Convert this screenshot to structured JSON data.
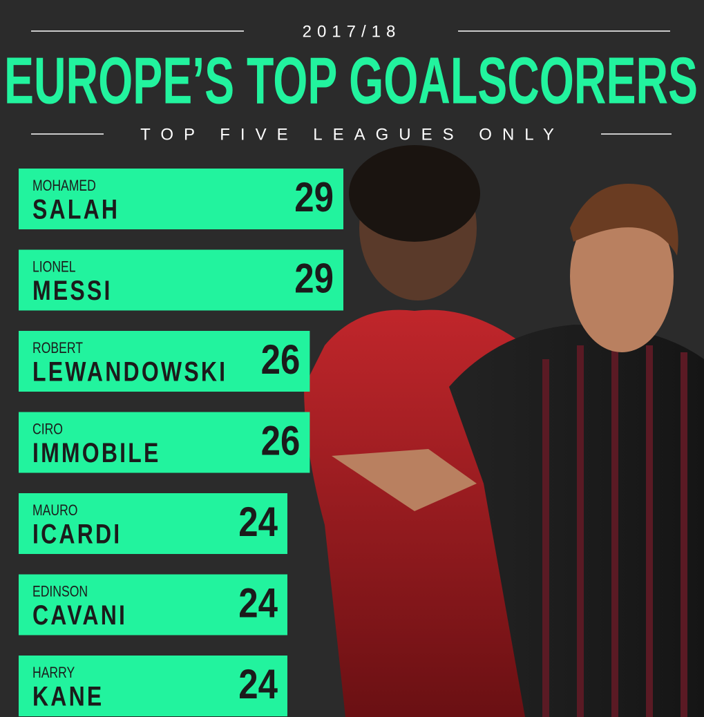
{
  "chart_data": {
    "type": "bar",
    "orientation": "horizontal",
    "subtitle": "2017/18",
    "title": "EUROPE’S TOP GOALSCORERS",
    "caption": "TOP FIVE LEAGUES ONLY",
    "first_names": [
      "MOHAMED",
      "LIONEL",
      "ROBERT",
      "CIRO",
      "MAURO",
      "EDINSON",
      "HARRY"
    ],
    "categories": [
      "SALAH",
      "MESSI",
      "LEWANDOWSKI",
      "IMMOBILE",
      "ICARDI",
      "CAVANI",
      "KANE"
    ],
    "values": [
      29,
      29,
      26,
      26,
      24,
      24,
      24
    ],
    "color": "#22f39e"
  }
}
